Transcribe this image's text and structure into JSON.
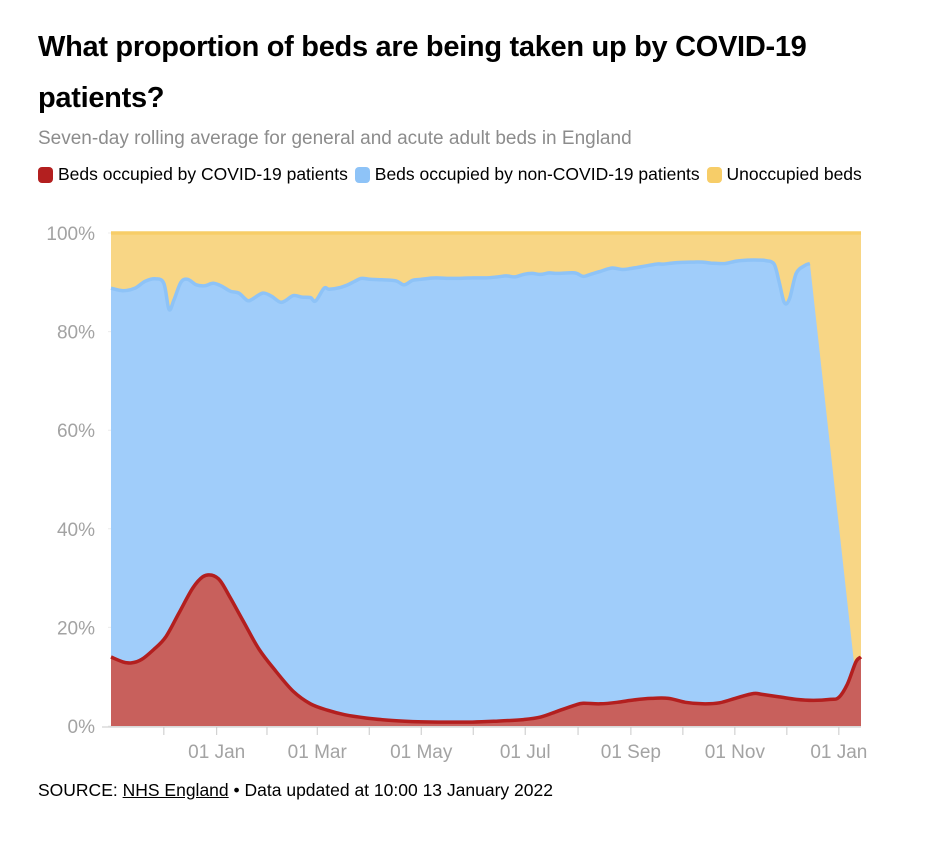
{
  "header": {
    "title": "What proportion of beds are being taken up by COVID-19 patients?",
    "subtitle": "Seven-day rolling average for general and acute adult beds in England"
  },
  "legend": [
    {
      "label": "Beds occupied by COVID-19 patients",
      "color": "#b31f1f"
    },
    {
      "label": "Beds occupied by non-COVID-19 patients",
      "color": "#8ec3f7"
    },
    {
      "label": "Unoccupied beds",
      "color": "#f7cd68"
    }
  ],
  "footer": {
    "source_prefix": "SOURCE: ",
    "source_link": "NHS England",
    "source_suffix": " • Data updated at 10:00 13 January 2022"
  },
  "chart_data": {
    "type": "area",
    "stacked": true,
    "title": "What proportion of beds are being taken up by COVID-19 patients?",
    "x_unit": "days since 01 Jan (first period)",
    "x_range": [
      -62,
      378
    ],
    "y_range": [
      0,
      100
    ],
    "y_ticks": [
      0,
      20,
      40,
      60,
      80,
      100
    ],
    "y_tick_labels": [
      "0%",
      "20%",
      "40%",
      "60%",
      "80%",
      "100%"
    ],
    "x_ticks": [
      {
        "label": "01 Jan",
        "x": 0
      },
      {
        "label": "01 Mar",
        "x": 59
      },
      {
        "label": "01 May",
        "x": 120
      },
      {
        "label": "01 Jul",
        "x": 181
      },
      {
        "label": "01 Sep",
        "x": 243
      },
      {
        "label": "01 Nov",
        "x": 304
      },
      {
        "label": "01 Jan",
        "x": 365
      }
    ],
    "series": [
      {
        "name": "Beds occupied by COVID-19 patients",
        "color": "#b31f1f",
        "fill": "#c8605c",
        "points": [
          [
            -62,
            14
          ],
          [
            -55,
            13
          ],
          [
            -50,
            12.8
          ],
          [
            -44,
            13.5
          ],
          [
            -37,
            15.5
          ],
          [
            -30,
            18
          ],
          [
            -22,
            23
          ],
          [
            -14,
            28
          ],
          [
            -8,
            30.3
          ],
          [
            -3,
            30.6
          ],
          [
            2,
            29.5
          ],
          [
            8,
            26
          ],
          [
            16,
            21
          ],
          [
            25,
            15.5
          ],
          [
            35,
            11
          ],
          [
            45,
            7
          ],
          [
            55,
            4.5
          ],
          [
            65,
            3.2
          ],
          [
            75,
            2.3
          ],
          [
            88,
            1.6
          ],
          [
            100,
            1.2
          ],
          [
            115,
            0.9
          ],
          [
            130,
            0.8
          ],
          [
            150,
            0.8
          ],
          [
            165,
            1.0
          ],
          [
            180,
            1.3
          ],
          [
            190,
            1.8
          ],
          [
            200,
            3.0
          ],
          [
            210,
            4.2
          ],
          [
            215,
            4.6
          ],
          [
            225,
            4.5
          ],
          [
            235,
            4.8
          ],
          [
            245,
            5.3
          ],
          [
            255,
            5.6
          ],
          [
            265,
            5.6
          ],
          [
            275,
            4.8
          ],
          [
            285,
            4.5
          ],
          [
            295,
            4.7
          ],
          [
            305,
            5.7
          ],
          [
            315,
            6.6
          ],
          [
            320,
            6.4
          ],
          [
            330,
            5.9
          ],
          [
            340,
            5.4
          ],
          [
            350,
            5.2
          ],
          [
            360,
            5.4
          ],
          [
            365,
            5.8
          ],
          [
            370,
            8.5
          ],
          [
            375,
            13
          ],
          [
            378,
            14
          ]
        ]
      },
      {
        "name": "Beds occupied by non-COVID-19 patients",
        "color": "#8ec3f7",
        "fill": "#a0cdfa",
        "cumulative_top": [
          [
            -62,
            88.8
          ],
          [
            -55,
            88.3
          ],
          [
            -48,
            88.8
          ],
          [
            -42,
            90.2
          ],
          [
            -36,
            90.7
          ],
          [
            -31,
            89.8
          ],
          [
            -28,
            84.5
          ],
          [
            -25,
            86.5
          ],
          [
            -21,
            90
          ],
          [
            -17,
            90.6
          ],
          [
            -12,
            89.5
          ],
          [
            -7,
            89.3
          ],
          [
            -2,
            89.8
          ],
          [
            3,
            89.2
          ],
          [
            8,
            88.2
          ],
          [
            13,
            87.8
          ],
          [
            18,
            86.3
          ],
          [
            21,
            86.6
          ],
          [
            27,
            87.8
          ],
          [
            32,
            87.2
          ],
          [
            37,
            86
          ],
          [
            40,
            86.2
          ],
          [
            45,
            87.3
          ],
          [
            50,
            87
          ],
          [
            55,
            86.9
          ],
          [
            58,
            86.2
          ],
          [
            63,
            88.8
          ],
          [
            66,
            88.6
          ],
          [
            72,
            88.9
          ],
          [
            77,
            89.5
          ],
          [
            81,
            90.2
          ],
          [
            85,
            90.8
          ],
          [
            90,
            90.6
          ],
          [
            97,
            90.5
          ],
          [
            105,
            90.3
          ],
          [
            110,
            89.5
          ],
          [
            115,
            90.4
          ],
          [
            120,
            90.6
          ],
          [
            128,
            90.9
          ],
          [
            135,
            90.8
          ],
          [
            142,
            90.8
          ],
          [
            150,
            90.9
          ],
          [
            158,
            90.9
          ],
          [
            165,
            91.1
          ],
          [
            170,
            91.3
          ],
          [
            175,
            91.1
          ],
          [
            180,
            91.6
          ],
          [
            185,
            91.8
          ],
          [
            190,
            91.6
          ],
          [
            195,
            91.9
          ],
          [
            200,
            91.8
          ],
          [
            210,
            91.9
          ],
          [
            215,
            91.2
          ],
          [
            220,
            91.7
          ],
          [
            225,
            92.2
          ],
          [
            232,
            92.9
          ],
          [
            238,
            92.6
          ],
          [
            243,
            92.8
          ],
          [
            250,
            93.2
          ],
          [
            258,
            93.7
          ],
          [
            262,
            93.7
          ],
          [
            270,
            94
          ],
          [
            280,
            94.1
          ],
          [
            285,
            94.1
          ],
          [
            290,
            93.9
          ],
          [
            298,
            93.8
          ],
          [
            305,
            94.3
          ],
          [
            312,
            94.5
          ],
          [
            318,
            94.5
          ],
          [
            322,
            94.4
          ],
          [
            327,
            93.7
          ],
          [
            330,
            90
          ],
          [
            333,
            85.9
          ],
          [
            336,
            86.6
          ],
          [
            340,
            91.8
          ],
          [
            345,
            93.4
          ],
          [
            348,
            93.8
          ]
        ]
      },
      {
        "name": "Unoccupied beds",
        "color": "#f7cd68",
        "fill": "#f8d685",
        "cumulative_top": 100
      }
    ]
  }
}
